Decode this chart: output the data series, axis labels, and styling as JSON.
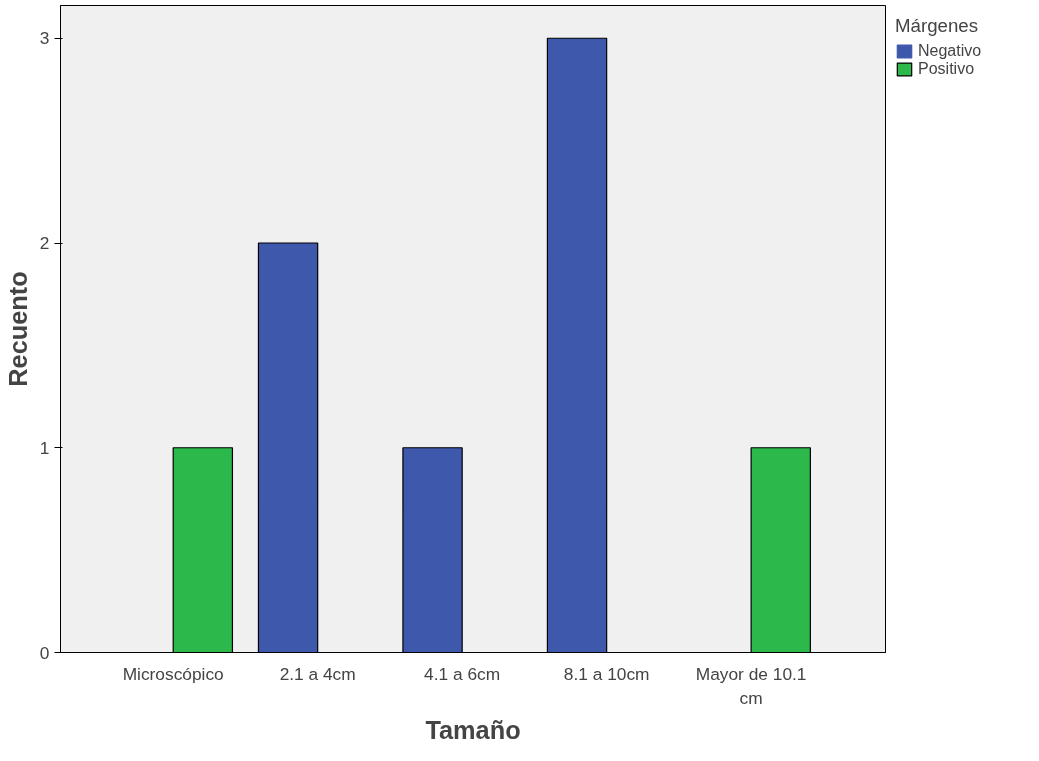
{
  "chart_data": {
    "type": "bar",
    "xlabel": "Tamaño",
    "ylabel": "Recuento",
    "legend_title": "Márgenes",
    "categories": [
      "Microscópico",
      "2.1 a 4cm",
      "4.1 a 6cm",
      "8.1 a 10cm",
      "Mayor de 10.1 cm"
    ],
    "series": [
      {
        "name": "Negativo",
        "color": "#3e58ac",
        "values": [
          0,
          2,
          1,
          3,
          0
        ]
      },
      {
        "name": "Positivo",
        "color": "#2db84b",
        "values": [
          1,
          0,
          0,
          0,
          1
        ]
      }
    ],
    "ylim": [
      0,
      3.16
    ],
    "yticks": [
      0,
      1,
      2,
      3
    ],
    "grid": false,
    "legend": "top right"
  }
}
